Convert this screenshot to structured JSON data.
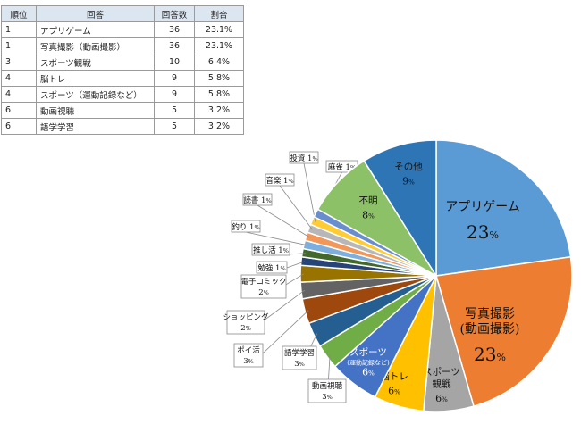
{
  "table": {
    "headers": [
      "順位",
      "回答",
      "回答数",
      "割合"
    ],
    "rows": [
      [
        "1",
        "アプリゲーム",
        "36",
        "23.1%"
      ],
      [
        "1",
        "写真撮影（動画撮影）",
        "36",
        "23.1%"
      ],
      [
        "3",
        "スポーツ観戦",
        "10",
        "6.4%"
      ],
      [
        "4",
        "脳トレ",
        "9",
        "5.8%"
      ],
      [
        "4",
        "スポーツ（運動記録など）",
        "9",
        "5.8%"
      ],
      [
        "6",
        "動画視聴",
        "5",
        "3.2%"
      ],
      [
        "6",
        "語学学習",
        "5",
        "3.2%"
      ]
    ]
  },
  "chart_data": {
    "type": "pie",
    "slices": [
      {
        "label": "アプリゲーム",
        "value": 23,
        "pct_text": "23",
        "color": "#5b9bd5",
        "text_color": "#111111"
      },
      {
        "label": "写真撮影\n(動画撮影)",
        "value": 23,
        "pct_text": "23",
        "color": "#ed7d31",
        "text_color": "#111111"
      },
      {
        "label": "スポーツ\n観戦",
        "value": 6,
        "pct_text": "6",
        "color": "#a5a5a5",
        "text_color": "#111111"
      },
      {
        "label": "脳トレ",
        "value": 6,
        "pct_text": "6",
        "color": "#ffc000",
        "text_color": "#111111"
      },
      {
        "label": "スポーツ",
        "sublabel": "(運動記録など)",
        "value": 6,
        "pct_text": "6",
        "color": "#4472c4",
        "text_color": "#ffffff"
      },
      {
        "label": "動画視聴",
        "value": 3,
        "pct_text": "3",
        "color": "#70ad47",
        "text_color": "#111111"
      },
      {
        "label": "語学学習",
        "value": 3,
        "pct_text": "3",
        "color": "#255e91",
        "text_color": "#111111"
      },
      {
        "label": "ポイ活",
        "value": 3,
        "pct_text": "3",
        "color": "#9e480e",
        "text_color": "#111111"
      },
      {
        "label": "ショッピング",
        "value": 2,
        "pct_text": "2",
        "color": "#636363",
        "text_color": "#111111"
      },
      {
        "label": "電子コミック",
        "value": 2,
        "pct_text": "2",
        "color": "#997300",
        "text_color": "#111111"
      },
      {
        "label": "勉強",
        "value": 1,
        "pct_text": "1",
        "color": "#264478",
        "text_color": "#111111"
      },
      {
        "label": "推し活",
        "value": 1,
        "pct_text": "1",
        "color": "#43682b",
        "text_color": "#111111"
      },
      {
        "label": "釣り",
        "value": 1,
        "pct_text": "1",
        "color": "#7cafdd",
        "text_color": "#111111"
      },
      {
        "label": "読書",
        "value": 1,
        "pct_text": "1",
        "color": "#f1975a",
        "text_color": "#111111"
      },
      {
        "label": "音楽",
        "value": 1,
        "pct_text": "1",
        "color": "#b7b7b7",
        "text_color": "#111111"
      },
      {
        "label": "投資",
        "value": 1,
        "pct_text": "1",
        "color": "#ffcd33",
        "text_color": "#111111"
      },
      {
        "label": "麻雀",
        "value": 1,
        "pct_text": "1",
        "color": "#698ed0",
        "text_color": "#111111"
      },
      {
        "label": "不明",
        "value": 8,
        "pct_text": "8",
        "color": "#8cc168",
        "text_color": "#111111"
      },
      {
        "label": "その他",
        "value": 9,
        "pct_text": "9",
        "color": "#2e75b6",
        "text_color": "#111111"
      }
    ],
    "pct_unit": "%"
  }
}
